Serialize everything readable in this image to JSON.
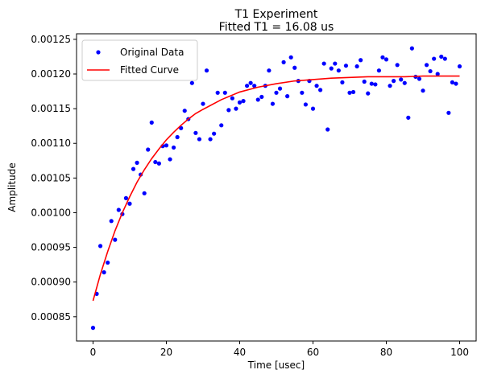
{
  "chart_data": {
    "type": "scatter",
    "title": "T1 Experiment",
    "subtitle": "Fitted T1 = 16.08 us",
    "xlabel": "Time [usec]",
    "ylabel": "Amplitude",
    "xlim": [
      -4.5,
      104.5
    ],
    "ylim": [
      0.000815,
      0.001258
    ],
    "xticks": [
      0,
      20,
      40,
      60,
      80,
      100
    ],
    "xtick_labels": [
      "0",
      "20",
      "40",
      "60",
      "80",
      "100"
    ],
    "yticks": [
      0.00085,
      0.0009,
      0.00095,
      0.001,
      0.00105,
      0.0011,
      0.00115,
      0.0012,
      0.00125
    ],
    "ytick_labels": [
      "0.00085",
      "0.00090",
      "0.00095",
      "0.00100",
      "0.00105",
      "0.00110",
      "0.00115",
      "0.00120",
      "0.00125"
    ],
    "grid": false,
    "legend_position": "top-left",
    "series": [
      {
        "name": "Original Data",
        "kind": "scatter",
        "color": "#0000ff",
        "x": [
          0,
          1,
          2,
          3,
          4,
          5,
          6,
          7,
          8,
          9,
          10,
          11,
          12,
          13,
          14,
          15,
          16,
          17,
          18,
          19,
          20,
          21,
          22,
          23,
          24,
          25,
          26,
          27,
          28,
          29,
          30,
          31,
          32,
          33,
          34,
          35,
          36,
          37,
          38,
          39,
          40,
          41,
          42,
          43,
          44,
          45,
          46,
          47,
          48,
          49,
          50,
          51,
          52,
          53,
          54,
          55,
          56,
          57,
          58,
          59,
          60,
          61,
          62,
          63,
          64,
          65,
          66,
          67,
          68,
          69,
          70,
          71,
          72,
          73,
          74,
          75,
          76,
          77,
          78,
          79,
          80,
          81,
          82,
          83,
          84,
          85,
          86,
          87,
          88,
          89,
          90,
          91,
          92,
          93,
          94,
          95,
          96,
          97,
          98,
          99,
          100
        ],
        "y": [
          0.000834,
          0.000883,
          0.000952,
          0.000914,
          0.000928,
          0.000988,
          0.000961,
          0.001004,
          0.000998,
          0.001021,
          0.001013,
          0.001063,
          0.001072,
          0.001055,
          0.001028,
          0.001091,
          0.00113,
          0.001073,
          0.001071,
          0.001096,
          0.001097,
          0.001077,
          0.001094,
          0.001109,
          0.001122,
          0.001147,
          0.001135,
          0.001187,
          0.001115,
          0.001106,
          0.001157,
          0.001205,
          0.001106,
          0.001114,
          0.001173,
          0.001126,
          0.001173,
          0.001148,
          0.001165,
          0.00115,
          0.001159,
          0.001161,
          0.001183,
          0.001187,
          0.001183,
          0.001163,
          0.001167,
          0.001183,
          0.001205,
          0.001157,
          0.001173,
          0.001179,
          0.001217,
          0.001168,
          0.001224,
          0.001209,
          0.00119,
          0.001173,
          0.001156,
          0.00119,
          0.00115,
          0.001183,
          0.001177,
          0.001215,
          0.00112,
          0.001208,
          0.001215,
          0.001205,
          0.001188,
          0.001212,
          0.001173,
          0.001174,
          0.001211,
          0.00122,
          0.001189,
          0.001172,
          0.001186,
          0.001185,
          0.001205,
          0.001224,
          0.001221,
          0.001183,
          0.00119,
          0.001213,
          0.001192,
          0.001187,
          0.001137,
          0.001237,
          0.001196,
          0.001193,
          0.001176,
          0.001213,
          0.001204,
          0.001222,
          0.0012,
          0.001225,
          0.001222,
          0.001144,
          0.001188,
          0.001186,
          0.001211
        ]
      },
      {
        "name": "Fitted Curve",
        "kind": "line",
        "color": "#ff0000",
        "x": [
          0,
          2,
          4,
          6,
          8,
          10,
          12,
          14,
          16,
          18,
          20,
          22,
          24,
          26,
          28,
          30,
          35,
          40,
          45,
          50,
          55,
          60,
          65,
          70,
          75,
          80,
          85,
          90,
          95,
          100
        ],
        "y": [
          0.000873,
          0.000911,
          0.000944,
          0.000974,
          0.001,
          0.001023,
          0.001044,
          0.001062,
          0.001078,
          0.001092,
          0.001105,
          0.001116,
          0.001126,
          0.001135,
          0.001143,
          0.001149,
          0.001163,
          0.001174,
          0.001181,
          0.001186,
          0.00119,
          0.001192,
          0.001194,
          0.001195,
          0.001196,
          0.001196,
          0.001196,
          0.001197,
          0.001197,
          0.001197
        ]
      }
    ]
  }
}
